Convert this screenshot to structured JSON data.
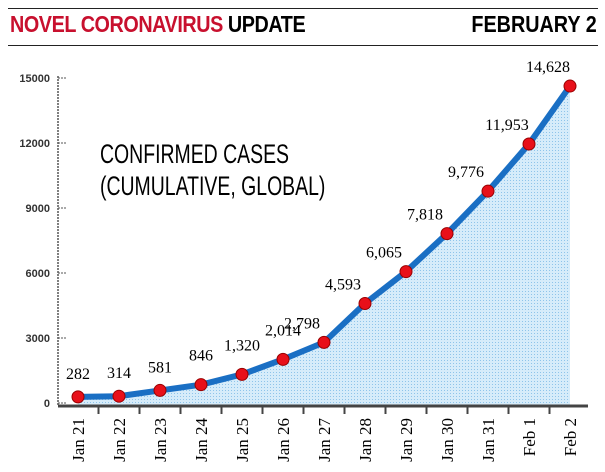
{
  "header": {
    "title_red": "NOVEL CORONAVIRUS",
    "title_black": "UPDATE",
    "date": "FEBRUARY 2"
  },
  "chart_data": {
    "type": "area",
    "title": "CONFIRMED CASES",
    "subtitle": "(CUMULATIVE, GLOBAL)",
    "categories": [
      "Jan 21",
      "Jan 22",
      "Jan 23",
      "Jan 24",
      "Jan 25",
      "Jan 26",
      "Jan 27",
      "Jan 28",
      "Jan 29",
      "Jan 30",
      "Jan 31",
      "Feb 1",
      "Feb 2"
    ],
    "values": [
      282,
      314,
      581,
      846,
      1320,
      2014,
      2798,
      4593,
      6065,
      7818,
      9776,
      11953,
      14628
    ],
    "value_labels": [
      "282",
      "314",
      "581",
      "846",
      "1,320",
      "2,014",
      "2,798",
      "4,593",
      "6,065",
      "7,818",
      "9,776",
      "11,953",
      "14,628"
    ],
    "yticks": [
      0,
      3000,
      6000,
      9000,
      12000,
      15000
    ],
    "ytick_labels": [
      "0",
      "3000",
      "6000",
      "9000",
      "12000",
      "15000"
    ],
    "ylim": [
      0,
      15000
    ],
    "line_color": "#1a6fc4",
    "marker_color": "#e8101a",
    "fill_color": "#b8dcf4"
  }
}
